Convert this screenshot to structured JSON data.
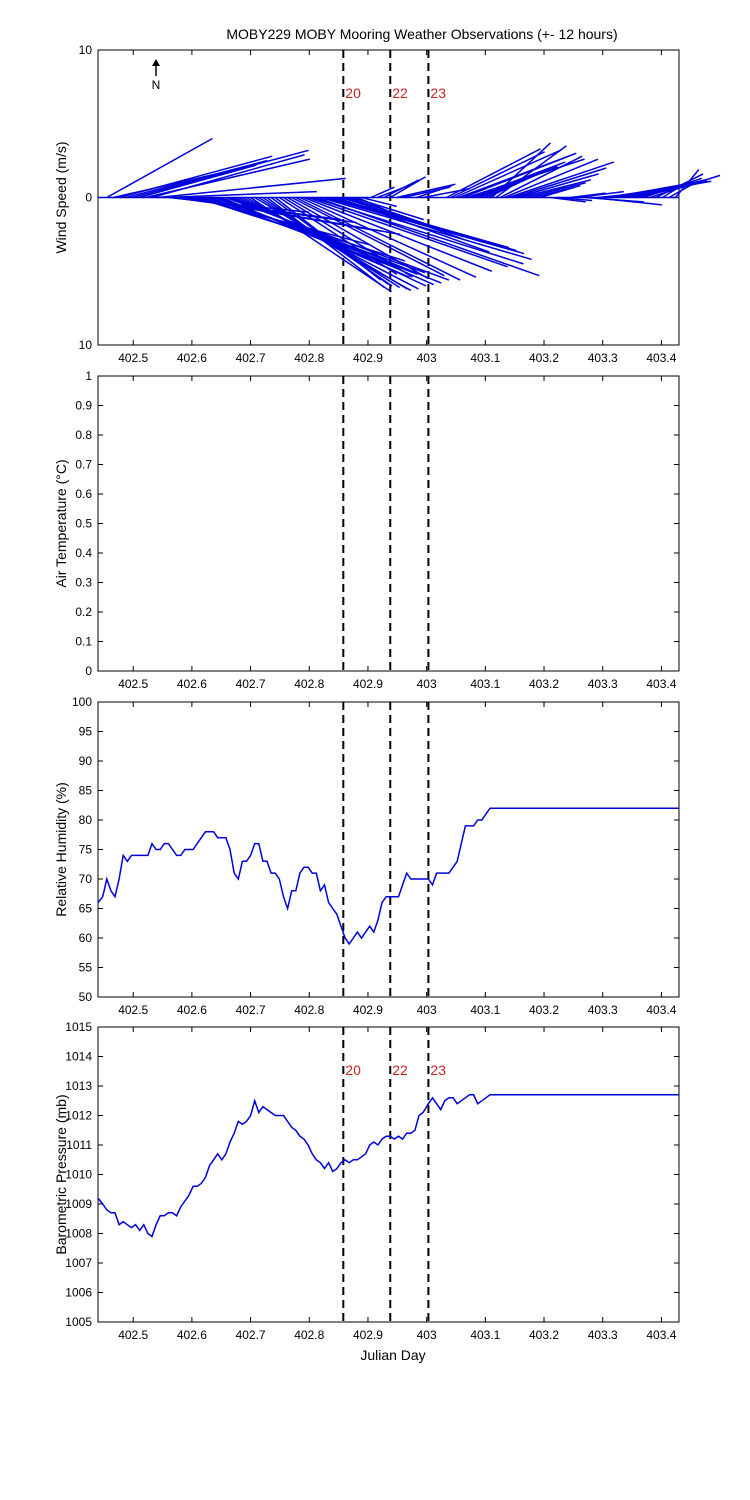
{
  "title": "MOBY229 MOBY Mooring Weather Observations (+- 12 hours)",
  "xlabel": "Julian Day",
  "north_label": "N",
  "colors": {
    "series": "#0000dd",
    "events": "#cc2222",
    "axes": "#000000"
  },
  "event_markers": [
    {
      "x": 402.858,
      "label": "20"
    },
    {
      "x": 402.938,
      "label": "22"
    },
    {
      "x": 403.003,
      "label": "23"
    }
  ],
  "x_ticks": [
    "402.5",
    "402.6",
    "402.7",
    "402.8",
    "402.9",
    "403",
    "403.1",
    "403.2",
    "403.3",
    "403.4"
  ],
  "chart_data": [
    {
      "type": "quiver",
      "ylabel": "Wind Speed (m/s)",
      "xlim": [
        402.44,
        403.43
      ],
      "ylim": [
        -10,
        10
      ],
      "y_ticks": [
        "10",
        "0",
        "10"
      ],
      "show_event_labels": true,
      "vectors": [
        {
          "x": 402.455,
          "u": 0.9,
          "v": 4.0
        },
        {
          "x": 402.466,
          "u": 1.1,
          "v": 2.0
        },
        {
          "x": 402.477,
          "u": 1.3,
          "v": 2.8
        },
        {
          "x": 402.488,
          "u": 1.2,
          "v": 2.5
        },
        {
          "x": 402.499,
          "u": 1.5,
          "v": 3.2
        },
        {
          "x": 402.51,
          "u": 1.0,
          "v": 2.2
        },
        {
          "x": 402.521,
          "u": 1.4,
          "v": 2.6
        },
        {
          "x": 402.532,
          "u": 1.3,
          "v": 2.9
        },
        {
          "x": 402.542,
          "u": 1.6,
          "v": 1.3
        },
        {
          "x": 402.553,
          "u": 1.3,
          "v": 0.4
        },
        {
          "x": 402.56,
          "u": 1.2,
          "v": -1.0
        },
        {
          "x": 402.567,
          "u": 1.3,
          "v": -1.4
        },
        {
          "x": 402.574,
          "u": 1.4,
          "v": -1.5
        },
        {
          "x": 402.581,
          "u": 1.5,
          "v": -1.7
        },
        {
          "x": 402.588,
          "u": 1.6,
          "v": -2.2
        },
        {
          "x": 402.595,
          "u": 1.8,
          "v": -2.5
        },
        {
          "x": 402.602,
          "u": 1.5,
          "v": -3.2
        },
        {
          "x": 402.609,
          "u": 1.4,
          "v": -3.6
        },
        {
          "x": 402.616,
          "u": 1.5,
          "v": -4.0
        },
        {
          "x": 402.623,
          "u": 1.7,
          "v": -4.3
        },
        {
          "x": 402.63,
          "u": 1.6,
          "v": -4.8
        },
        {
          "x": 402.637,
          "u": 1.8,
          "v": -5.1
        },
        {
          "x": 402.644,
          "u": 1.7,
          "v": -5.2
        },
        {
          "x": 402.651,
          "u": 1.6,
          "v": -5.4
        },
        {
          "x": 402.658,
          "u": 1.9,
          "v": -5.6
        },
        {
          "x": 402.665,
          "u": 1.8,
          "v": -5.8
        },
        {
          "x": 402.672,
          "u": 1.7,
          "v": -5.9
        },
        {
          "x": 402.679,
          "u": 1.6,
          "v": -6.0
        },
        {
          "x": 402.686,
          "u": 1.5,
          "v": -6.2
        },
        {
          "x": 402.693,
          "u": 1.4,
          "v": -6.3
        },
        {
          "x": 402.7,
          "u": 1.2,
          "v": -6.4
        },
        {
          "x": 402.707,
          "u": 1.3,
          "v": -6.2
        },
        {
          "x": 402.714,
          "u": 1.2,
          "v": -6.1
        },
        {
          "x": 402.721,
          "u": 1.1,
          "v": -6.0
        },
        {
          "x": 402.728,
          "u": 1.0,
          "v": -6.1
        },
        {
          "x": 402.735,
          "u": 1.0,
          "v": -5.9
        },
        {
          "x": 402.742,
          "u": 0.9,
          "v": -5.6
        },
        {
          "x": 402.749,
          "u": 1.0,
          "v": -5.2
        },
        {
          "x": 402.756,
          "u": 1.1,
          "v": -5.4
        },
        {
          "x": 402.763,
          "u": 1.2,
          "v": -5.5
        },
        {
          "x": 402.77,
          "u": 1.3,
          "v": -5.3
        },
        {
          "x": 402.777,
          "u": 1.4,
          "v": -5.6
        },
        {
          "x": 402.784,
          "u": 1.5,
          "v": -5.4
        },
        {
          "x": 402.791,
          "u": 1.6,
          "v": -5.0
        },
        {
          "x": 402.798,
          "u": 1.7,
          "v": -4.7
        },
        {
          "x": 402.805,
          "u": 1.8,
          "v": -4.5
        },
        {
          "x": 402.812,
          "u": 1.9,
          "v": -5.3
        },
        {
          "x": 402.819,
          "u": 1.8,
          "v": -4.2
        },
        {
          "x": 402.826,
          "u": 1.7,
          "v": -3.8
        },
        {
          "x": 402.833,
          "u": 1.6,
          "v": -3.6
        },
        {
          "x": 402.84,
          "u": 1.5,
          "v": -3.4
        },
        {
          "x": 402.847,
          "u": 1.3,
          "v": -3.7
        },
        {
          "x": 402.854,
          "u": 1.2,
          "v": -3.0
        },
        {
          "x": 402.861,
          "u": 1.0,
          "v": -2.8
        },
        {
          "x": 402.868,
          "u": 0.8,
          "v": -2.2
        },
        {
          "x": 402.875,
          "u": 0.6,
          "v": -1.5
        },
        {
          "x": 402.882,
          "u": 0.4,
          "v": -1.4
        },
        {
          "x": 402.889,
          "u": 0.3,
          "v": -0.6
        },
        {
          "x": 402.905,
          "u": 0.2,
          "v": 0.7
        },
        {
          "x": 402.916,
          "u": 0.3,
          "v": 0.9
        },
        {
          "x": 402.927,
          "u": 0.3,
          "v": 1.2
        },
        {
          "x": 402.938,
          "u": 0.3,
          "v": 1.4
        },
        {
          "x": 402.949,
          "u": 0.5,
          "v": 0.9
        },
        {
          "x": 402.96,
          "u": 0.4,
          "v": 0.7
        },
        {
          "x": 402.983,
          "u": 0.3,
          "v": 0.8
        },
        {
          "x": 402.994,
          "u": 0.4,
          "v": 0.6
        },
        {
          "x": 403.034,
          "u": 0.8,
          "v": 3.3
        },
        {
          "x": 403.041,
          "u": 0.8,
          "v": 3.1
        },
        {
          "x": 403.048,
          "u": 0.9,
          "v": 3.2
        },
        {
          "x": 403.055,
          "u": 1.0,
          "v": 3.0
        },
        {
          "x": 403.062,
          "u": 0.9,
          "v": 2.8
        },
        {
          "x": 403.069,
          "u": 1.0,
          "v": 2.6
        },
        {
          "x": 403.076,
          "u": 0.8,
          "v": 2.4
        },
        {
          "x": 403.083,
          "u": 0.7,
          "v": 2.1
        },
        {
          "x": 403.09,
          "u": 0.6,
          "v": 2.0
        },
        {
          "x": 403.097,
          "u": 0.5,
          "v": 1.7
        },
        {
          "x": 403.104,
          "u": 0.4,
          "v": 1.5
        },
        {
          "x": 403.111,
          "u": 0.5,
          "v": 3.7
        },
        {
          "x": 403.118,
          "u": 0.6,
          "v": 3.5
        },
        {
          "x": 403.125,
          "u": 0.7,
          "v": 2.8
        },
        {
          "x": 403.132,
          "u": 0.8,
          "v": 2.6
        },
        {
          "x": 403.139,
          "u": 0.9,
          "v": 2.4
        },
        {
          "x": 403.146,
          "u": 0.8,
          "v": 2.0
        },
        {
          "x": 403.153,
          "u": 0.7,
          "v": 1.6
        },
        {
          "x": 403.16,
          "u": 0.6,
          "v": 1.2
        },
        {
          "x": 403.171,
          "u": 0.5,
          "v": 1.0
        },
        {
          "x": 403.182,
          "u": 0.4,
          "v": 0.8
        },
        {
          "x": 403.193,
          "u": 0.3,
          "v": 0.7
        },
        {
          "x": 403.211,
          "u": 0.3,
          "v": -0.3
        },
        {
          "x": 403.222,
          "u": 0.3,
          "v": -0.2
        },
        {
          "x": 403.245,
          "u": 0.3,
          "v": 0.3
        },
        {
          "x": 403.256,
          "u": 0.4,
          "v": 0.4
        },
        {
          "x": 403.27,
          "u": 0.5,
          "v": -0.3
        },
        {
          "x": 403.281,
          "u": 0.6,
          "v": -0.5
        },
        {
          "x": 403.292,
          "u": 0.5,
          "v": 0.4
        },
        {
          "x": 403.303,
          "u": 0.6,
          "v": 0.7
        },
        {
          "x": 403.314,
          "u": 0.7,
          "v": 1.0
        },
        {
          "x": 403.325,
          "u": 0.8,
          "v": 1.1
        },
        {
          "x": 403.336,
          "u": 0.7,
          "v": 1.2
        },
        {
          "x": 403.347,
          "u": 0.6,
          "v": 1.0
        },
        {
          "x": 403.358,
          "u": 0.6,
          "v": 1.1
        },
        {
          "x": 403.369,
          "u": 0.5,
          "v": 1.3
        },
        {
          "x": 403.38,
          "u": 0.6,
          "v": 1.5
        },
        {
          "x": 403.391,
          "u": 0.4,
          "v": 1.6
        },
        {
          "x": 403.402,
          "u": 0.2,
          "v": 1.0
        },
        {
          "x": 403.413,
          "u": 0.2,
          "v": 0.9
        },
        {
          "x": 403.424,
          "u": 0.2,
          "v": 1.9
        }
      ]
    },
    {
      "type": "line",
      "ylabel": "Air Temperature (°C)",
      "xlim": [
        402.44,
        403.43
      ],
      "ylim": [
        0,
        1
      ],
      "y_ticks": [
        "0",
        "0.1",
        "0.2",
        "0.3",
        "0.4",
        "0.5",
        "0.6",
        "0.7",
        "0.8",
        "0.9",
        "1"
      ],
      "show_event_labels": false,
      "x": [],
      "y": []
    },
    {
      "type": "line",
      "ylabel": "Relative Humidity (%)",
      "xlim": [
        402.44,
        403.43
      ],
      "ylim": [
        50,
        100
      ],
      "y_ticks": [
        "50",
        "55",
        "60",
        "65",
        "70",
        "75",
        "80",
        "85",
        "90",
        "95",
        "100"
      ],
      "show_event_labels": false,
      "x": [
        402.44,
        402.448,
        402.455,
        402.462,
        402.469,
        402.476,
        402.483,
        402.49,
        402.497,
        402.504,
        402.511,
        402.518,
        402.525,
        402.532,
        402.539,
        402.546,
        402.553,
        402.56,
        402.567,
        402.574,
        402.581,
        402.588,
        402.595,
        402.602,
        402.609,
        402.616,
        402.623,
        402.63,
        402.637,
        402.644,
        402.651,
        402.658,
        402.665,
        402.672,
        402.679,
        402.686,
        402.693,
        402.7,
        402.707,
        402.714,
        402.721,
        402.728,
        402.735,
        402.742,
        402.749,
        402.756,
        402.763,
        402.77,
        402.777,
        402.784,
        402.791,
        402.798,
        402.805,
        402.812,
        402.819,
        402.826,
        402.833,
        402.84,
        402.847,
        402.854,
        402.861,
        402.868,
        402.875,
        402.882,
        402.889,
        402.896,
        402.903,
        402.91,
        402.917,
        402.924,
        402.931,
        402.938,
        402.945,
        402.952,
        402.959,
        402.966,
        402.973,
        402.98,
        402.987,
        402.994,
        403.003,
        403.01,
        403.017,
        403.024,
        403.031,
        403.038,
        403.045,
        403.052,
        403.059,
        403.066,
        403.073,
        403.08,
        403.087,
        403.094,
        403.101,
        403.108,
        403.115,
        403.122,
        403.129,
        403.136,
        403.143,
        403.15,
        403.157,
        403.164,
        403.171,
        403.178,
        403.185,
        403.192,
        403.199,
        403.206,
        403.213,
        403.22,
        403.227,
        403.234,
        403.241,
        403.248,
        403.255,
        403.262,
        403.269,
        403.276,
        403.283,
        403.29,
        403.297,
        403.304,
        403.311,
        403.318,
        403.325,
        403.332,
        403.339,
        403.346,
        403.353,
        403.36,
        403.367,
        403.374,
        403.381,
        403.388,
        403.395,
        403.402,
        403.409,
        403.416,
        403.423,
        403.43
      ],
      "y": [
        66,
        67,
        70,
        68,
        67,
        70,
        74,
        73,
        74,
        74,
        74,
        74,
        74,
        76,
        75,
        75,
        76,
        76,
        75,
        74,
        74,
        75,
        75,
        75,
        76,
        77,
        78,
        78,
        78,
        77,
        77,
        77,
        75,
        71,
        70,
        73,
        73,
        74,
        76,
        76,
        73,
        73,
        71,
        71,
        70,
        67,
        65,
        68,
        68,
        71,
        72,
        72,
        71,
        71,
        68,
        69,
        66,
        65,
        64,
        62,
        60,
        59,
        60,
        61,
        60,
        61,
        62,
        61,
        63,
        66,
        67,
        67,
        67,
        67,
        69,
        71,
        70,
        70,
        70,
        70,
        70,
        69,
        71,
        71,
        71,
        71,
        72,
        73,
        76,
        79,
        79,
        79,
        80,
        80,
        81,
        82,
        82,
        82,
        82,
        82,
        82,
        82,
        82,
        82,
        82,
        82,
        82,
        82,
        82,
        82,
        82,
        82,
        82,
        82,
        82,
        82,
        82,
        82,
        82,
        82,
        82,
        82,
        82,
        82,
        82,
        82,
        82,
        82,
        82,
        82,
        82,
        82,
        82,
        82,
        82,
        82,
        82,
        82,
        82,
        82,
        82,
        82
      ]
    },
    {
      "type": "line",
      "ylabel": "Barometric Pressure (mb)",
      "xlim": [
        402.44,
        403.43
      ],
      "ylim": [
        1005,
        1015
      ],
      "y_ticks": [
        "1005",
        "1006",
        "1007",
        "1008",
        "1009",
        "1010",
        "1011",
        "1012",
        "1013",
        "1014",
        "1015"
      ],
      "show_event_labels": true,
      "x": [
        402.44,
        402.448,
        402.455,
        402.462,
        402.469,
        402.476,
        402.483,
        402.49,
        402.497,
        402.504,
        402.511,
        402.518,
        402.525,
        402.532,
        402.539,
        402.546,
        402.553,
        402.56,
        402.567,
        402.574,
        402.581,
        402.588,
        402.595,
        402.602,
        402.609,
        402.616,
        402.623,
        402.63,
        402.637,
        402.644,
        402.651,
        402.658,
        402.665,
        402.672,
        402.679,
        402.686,
        402.693,
        402.7,
        402.707,
        402.714,
        402.721,
        402.728,
        402.735,
        402.742,
        402.749,
        402.756,
        402.763,
        402.77,
        402.777,
        402.784,
        402.791,
        402.798,
        402.805,
        402.812,
        402.819,
        402.826,
        402.833,
        402.84,
        402.847,
        402.854,
        402.861,
        402.868,
        402.875,
        402.882,
        402.889,
        402.896,
        402.903,
        402.91,
        402.917,
        402.924,
        402.931,
        402.938,
        402.945,
        402.952,
        402.959,
        402.966,
        402.973,
        402.98,
        402.987,
        402.994,
        403.003,
        403.01,
        403.017,
        403.024,
        403.031,
        403.038,
        403.045,
        403.052,
        403.059,
        403.066,
        403.073,
        403.08,
        403.087,
        403.094,
        403.101,
        403.108,
        403.115,
        403.122,
        403.129,
        403.136,
        403.143,
        403.15,
        403.157,
        403.164,
        403.171,
        403.178,
        403.185,
        403.192,
        403.199,
        403.206,
        403.213,
        403.22,
        403.227,
        403.234,
        403.241,
        403.248,
        403.255,
        403.262,
        403.269,
        403.276,
        403.283,
        403.29,
        403.297,
        403.304,
        403.311,
        403.318,
        403.325,
        403.332,
        403.339,
        403.346,
        403.353,
        403.36,
        403.367,
        403.374,
        403.381,
        403.388,
        403.395,
        403.402,
        403.409,
        403.416,
        403.423,
        403.43
      ],
      "y": [
        1009.2,
        1009.0,
        1008.8,
        1008.7,
        1008.7,
        1008.3,
        1008.4,
        1008.3,
        1008.2,
        1008.3,
        1008.1,
        1008.3,
        1008.0,
        1007.9,
        1008.3,
        1008.6,
        1008.6,
        1008.7,
        1008.7,
        1008.6,
        1008.9,
        1009.1,
        1009.3,
        1009.6,
        1009.6,
        1009.7,
        1009.9,
        1010.3,
        1010.5,
        1010.7,
        1010.5,
        1010.7,
        1011.1,
        1011.4,
        1011.8,
        1011.7,
        1011.8,
        1012.0,
        1012.5,
        1012.1,
        1012.3,
        1012.2,
        1012.1,
        1012.0,
        1012.0,
        1012.0,
        1011.8,
        1011.6,
        1011.5,
        1011.3,
        1011.2,
        1011.0,
        1010.7,
        1010.5,
        1010.4,
        1010.2,
        1010.4,
        1010.1,
        1010.2,
        1010.4,
        1010.5,
        1010.4,
        1010.5,
        1010.5,
        1010.6,
        1010.7,
        1011.0,
        1011.1,
        1011.0,
        1011.2,
        1011.3,
        1011.3,
        1011.2,
        1011.3,
        1011.2,
        1011.4,
        1011.4,
        1011.5,
        1012.0,
        1012.1,
        1012.4,
        1012.6,
        1012.4,
        1012.2,
        1012.5,
        1012.6,
        1012.6,
        1012.4,
        1012.5,
        1012.6,
        1012.7,
        1012.7,
        1012.4,
        1012.5,
        1012.6,
        1012.7,
        1012.7,
        1012.7,
        1012.7,
        1012.7,
        1012.7,
        1012.7,
        1012.7,
        1012.7,
        1012.7,
        1012.7,
        1012.7,
        1012.7,
        1012.7,
        1012.7,
        1012.7,
        1012.7,
        1012.7,
        1012.7,
        1012.7,
        1012.7,
        1012.7,
        1012.7,
        1012.7,
        1012.7,
        1012.7,
        1012.7,
        1012.7,
        1012.7,
        1012.7,
        1012.7,
        1012.7,
        1012.7,
        1012.7,
        1012.7,
        1012.7,
        1012.7,
        1012.7,
        1012.7,
        1012.7,
        1012.7,
        1012.7,
        1012.7,
        1012.7,
        1012.7,
        1012.7,
        1012.7
      ]
    }
  ]
}
